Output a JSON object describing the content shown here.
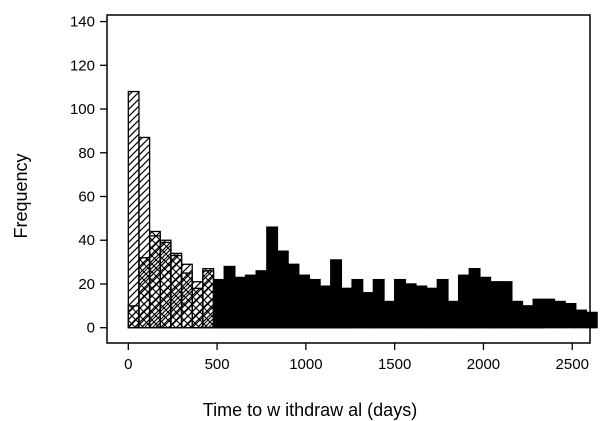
{
  "chart_data": {
    "type": "bar",
    "title": "",
    "xlabel": "Time to w ithdraw al (days)",
    "ylabel": "Frequency",
    "xlim": [
      -120,
      2600
    ],
    "ylim": [
      -7,
      143
    ],
    "bin_width": 60,
    "x_ticks": [
      0,
      500,
      1000,
      1500,
      2000,
      2500
    ],
    "y_ticks": [
      0,
      20,
      40,
      60,
      80,
      100,
      120,
      140
    ],
    "grid": false,
    "legend": "none",
    "series": [
      {
        "pattern": "diagonal-hatch",
        "start": 0,
        "values": [
          108,
          87,
          42,
          40,
          33,
          29,
          21,
          26,
          14,
          9,
          12,
          13,
          8,
          10,
          9,
          6,
          5,
          3,
          5,
          4,
          3
        ]
      },
      {
        "pattern": "cross-hatch",
        "start": 0,
        "values": [
          10,
          32,
          44,
          39,
          34,
          25,
          18,
          27,
          19,
          12,
          14,
          11,
          10,
          9,
          7,
          5,
          9,
          7,
          8,
          5,
          4,
          3,
          5,
          3,
          3,
          2,
          2,
          2,
          2,
          2,
          1,
          1,
          1,
          1,
          1,
          1,
          1,
          1,
          1,
          0
        ]
      },
      {
        "pattern": "solid",
        "color": "#000000",
        "start": 480,
        "values": [
          22,
          28,
          23,
          24,
          26,
          46,
          35,
          29,
          24,
          22,
          19,
          31,
          18,
          22,
          16,
          22,
          12,
          22,
          20,
          19,
          18,
          22,
          12,
          24,
          27,
          23,
          21,
          21,
          12,
          10,
          13,
          13,
          12,
          11,
          8,
          7
        ]
      }
    ]
  }
}
